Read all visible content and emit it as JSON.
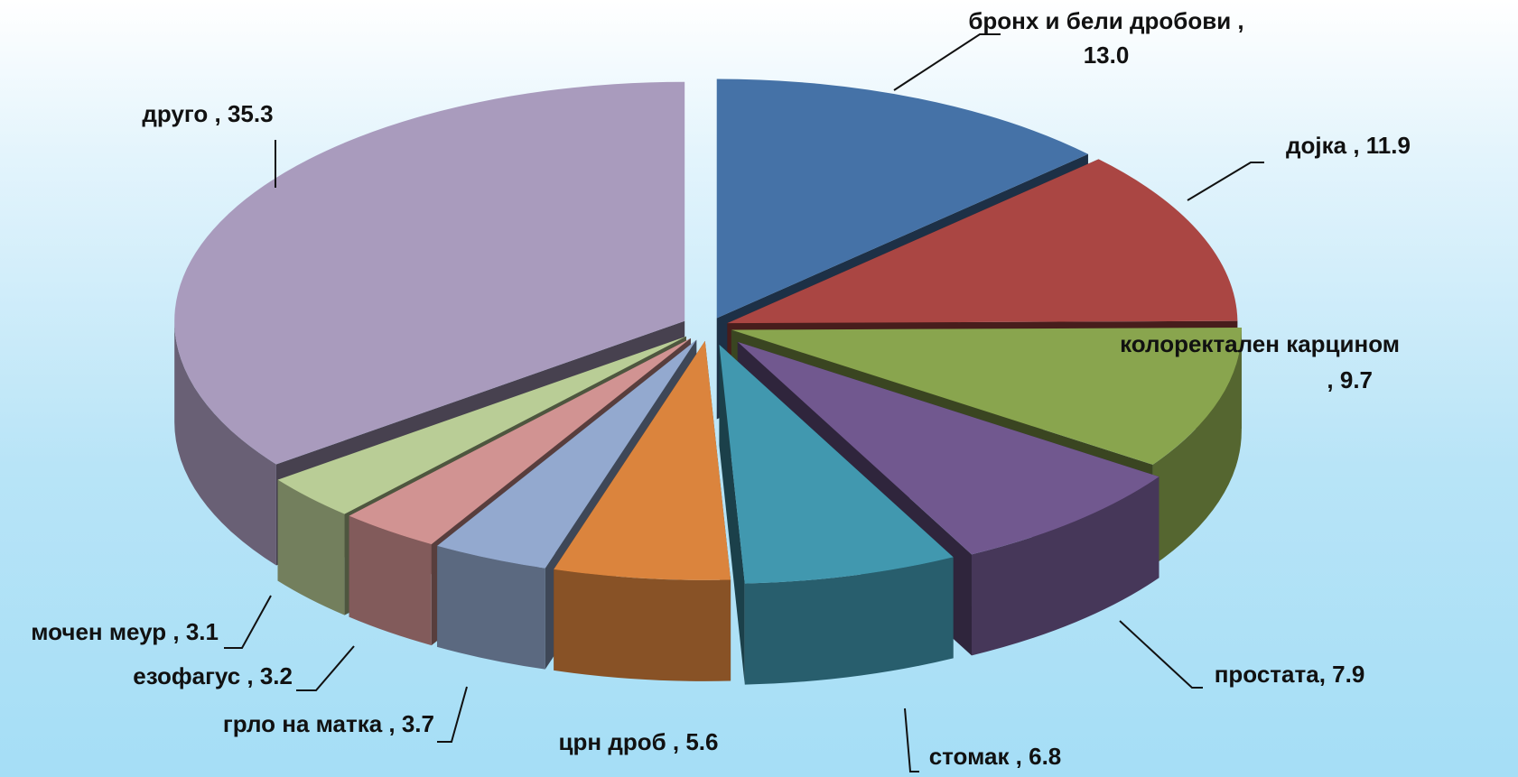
{
  "chart_data": {
    "type": "pie",
    "title": "",
    "slices": [
      {
        "label": "бронх и бели дробови , 13.0",
        "name": "бронх и бели дробови",
        "value": 13.0,
        "color": "#4572a7"
      },
      {
        "label": "дојка , 11.9",
        "name": "дојка",
        "value": 11.9,
        "color": "#aa4643"
      },
      {
        "label": "колоректален карцином , 9.7",
        "name": "колоректален карцином",
        "value": 9.7,
        "color": "#89a54e"
      },
      {
        "label": "простата, 7.9",
        "name": "простата",
        "value": 7.9,
        "color": "#71588f"
      },
      {
        "label": "стомак , 6.8",
        "name": "стомак",
        "value": 6.8,
        "color": "#4198af"
      },
      {
        "label": "црн дроб , 5.6",
        "name": "црн дроб",
        "value": 5.6,
        "color": "#db843d"
      },
      {
        "label": "грло на матка , 3.7",
        "name": "грло на матка",
        "value": 3.7,
        "color": "#93a9cf"
      },
      {
        "label": "езофагус , 3.2",
        "name": "езофагус",
        "value": 3.2,
        "color": "#d19392"
      },
      {
        "label": "мочен меур , 3.1",
        "name": "мочен меур",
        "value": 3.1,
        "color": "#b9cd96"
      },
      {
        "label": "друго , 35.3",
        "name": "друго",
        "value": 35.3,
        "color": "#a99bbd"
      }
    ],
    "exploded": true,
    "three_d": true,
    "legend": "none"
  }
}
